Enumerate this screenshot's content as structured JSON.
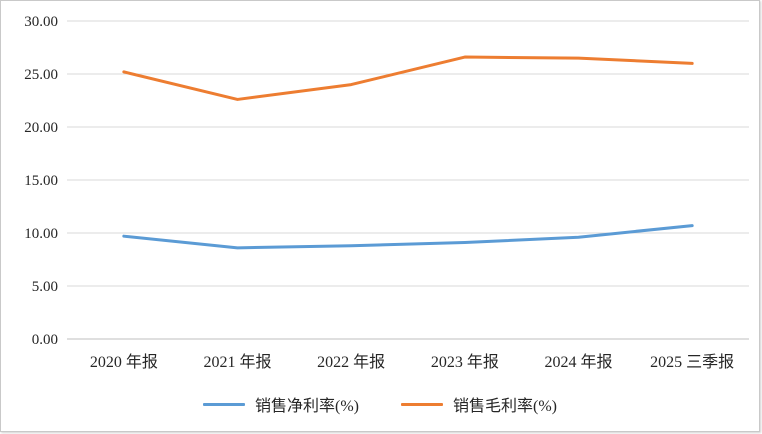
{
  "chart_data": {
    "type": "line",
    "title": "",
    "categories": [
      "2020 年报",
      "2021 年报",
      "2022 年报",
      "2023 年报",
      "2024 年报",
      "2025 三季报"
    ],
    "series": [
      {
        "name": "销售净利率(%)",
        "color": "#5B9BD5",
        "values": [
          9.7,
          8.6,
          8.8,
          9.1,
          9.6,
          10.7
        ]
      },
      {
        "name": "销售毛利率(%)",
        "color": "#ED7D31",
        "values": [
          25.2,
          22.6,
          24.0,
          26.6,
          26.5,
          26.0
        ]
      }
    ],
    "xlabel": "",
    "ylabel": "",
    "ylim": [
      0,
      30
    ],
    "ytick_step": 5,
    "ytick_decimals": 2,
    "grid": true,
    "legend_position": "bottom",
    "grid_color": "#D9D9D9",
    "axis_color": "#BFBFBF",
    "line_width": 3
  }
}
